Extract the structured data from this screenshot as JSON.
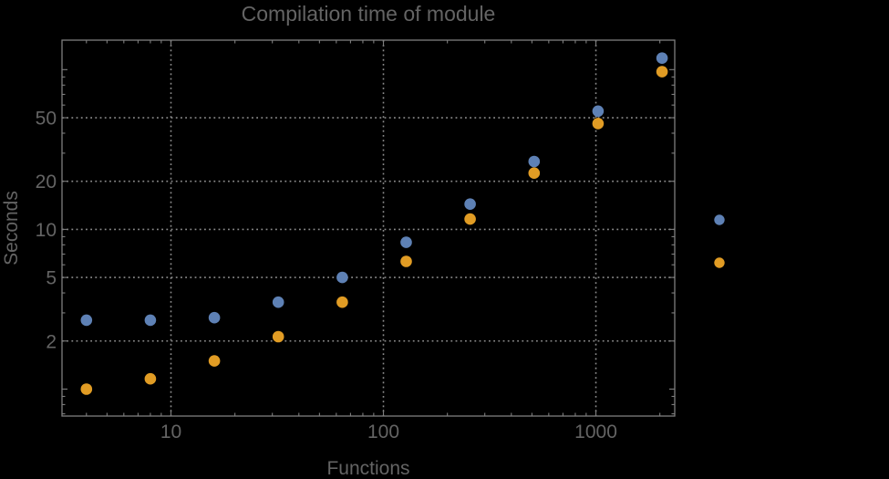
{
  "chart_data": {
    "type": "scatter",
    "title": "Compilation time of module",
    "xlabel": "Functions",
    "ylabel": "Seconds",
    "x_scale": "log",
    "y_scale": "log",
    "xlim": [
      3.07,
      2350
    ],
    "ylim": [
      0.678,
      153
    ],
    "grid": true,
    "grid_style": "dotted",
    "x": [
      4,
      8,
      16,
      32,
      64,
      128,
      256,
      512,
      1024,
      2048
    ],
    "series": [
      {
        "name": "series-1-blue",
        "color": "#5e81b5",
        "values": [
          2.7,
          2.7,
          2.8,
          3.5,
          5.0,
          8.3,
          14.4,
          26.6,
          55,
          118
        ]
      },
      {
        "name": "series-2-orange",
        "color": "#e19c24",
        "values": [
          1.0,
          1.16,
          1.5,
          2.13,
          3.5,
          6.3,
          11.6,
          22.5,
          46,
          97
        ]
      }
    ],
    "x_ticks": {
      "values": [
        10,
        100,
        1000
      ],
      "labels": [
        "10",
        "100",
        "1000"
      ]
    },
    "y_ticks": {
      "values": [
        2,
        5,
        10,
        20,
        50
      ],
      "labels": [
        "2",
        "5",
        "10",
        "20",
        "50"
      ]
    },
    "legend": {
      "position": "right-of-plot",
      "entries": [
        {
          "series": "series-1-blue",
          "marker_color": "#5e81b5",
          "label": ""
        },
        {
          "series": "series-2-orange",
          "marker_color": "#e19c24",
          "label": ""
        }
      ]
    }
  },
  "colors": {
    "background": "#000000",
    "frame": "#7e7e7e",
    "grid": "#8c8c8c",
    "text": "#646464"
  }
}
